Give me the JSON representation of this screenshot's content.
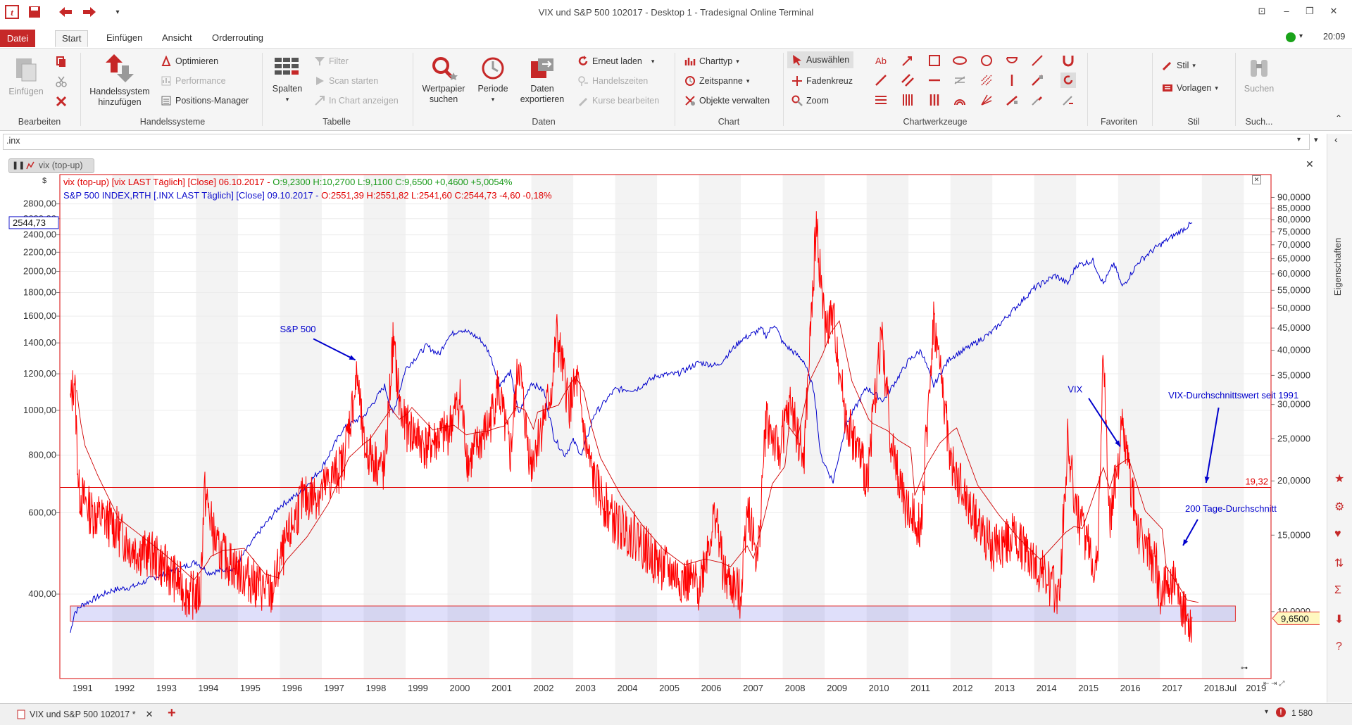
{
  "window": {
    "title": "VIX und S&P 500 102017 - Desktop 1 - Tradesignal Online Terminal",
    "time": "20:09"
  },
  "tabs": [
    "Datei",
    "Start",
    "Einfügen",
    "Ansicht",
    "Orderrouting"
  ],
  "active_tab": "Start",
  "ribbon": {
    "bearbeiten": {
      "label": "Bearbeiten",
      "einfuegen": "Einfügen"
    },
    "handelssysteme": {
      "label": "Handelssysteme",
      "add": "Handelssystem\nhinzufügen",
      "optimieren": "Optimieren",
      "performance": "Performance",
      "positions": "Positions-Manager"
    },
    "tabelle": {
      "label": "Tabelle",
      "spalten": "Spalten",
      "filter": "Filter",
      "scan": "Scan starten",
      "in_chart": "In Chart anzeigen"
    },
    "daten": {
      "label": "Daten",
      "wertpapier": "Wertpapier\nsuchen",
      "periode": "Periode",
      "export": "Daten\nexportieren",
      "reload": "Erneut laden",
      "handelszeiten": "Handelszeiten",
      "kurse": "Kurse bearbeiten"
    },
    "chart": {
      "label": "Chart",
      "charttyp": "Charttyp",
      "zeitspanne": "Zeitspanne",
      "objekte": "Objekte verwalten"
    },
    "chartwerkzeuge": {
      "label": "Chartwerkzeuge",
      "auswaehlen": "Auswählen",
      "fadenkreuz": "Fadenkreuz",
      "zoom": "Zoom"
    },
    "favoriten": {
      "label": "Favoriten"
    },
    "stil": {
      "label": "Stil",
      "stil": "Stil",
      "vorlagen": "Vorlagen"
    },
    "suche": {
      "label": "Such...",
      "suchen": "Suchen"
    }
  },
  "symbol_input": ".inx",
  "chart_tab": "vix (top-up)",
  "sidebar": {
    "label": "Eigenschaften"
  },
  "bottom": {
    "doc_tab": "VIX und S&P 500 102017 *",
    "status": "1 580"
  },
  "chart_data": {
    "type": "line",
    "legend": [
      {
        "prefix": "vix (top-up) [vix LAST Täglich] [Close] 06.10.2017 - ",
        "ohlc": "O:9,2300 H:10,2700 L:9,1100 C:9,6500 +0,4600 +5,0054%"
      },
      {
        "prefix": "S&P 500 INDEX,RTH [.INX LAST Täglich] [Close] 09.10.2017 - ",
        "ohlc": "O:2551,39 H:2551,82 L:2541,60 C:2544,73 -4,60 -0,18%"
      }
    ],
    "left_axis": {
      "unit": "$",
      "ticks": [
        "2800,00",
        "2600,00",
        "2400,00",
        "2200,00",
        "2000,00",
        "1800,00",
        "1600,00",
        "1400,00",
        "1200,00",
        "1000,00",
        "800,00",
        "600,00",
        "400,00"
      ],
      "values": [
        2800,
        2600,
        2400,
        2200,
        2000,
        1800,
        1600,
        1400,
        1200,
        1000,
        800,
        600,
        400
      ],
      "last_label": "2544,73",
      "scale": "log"
    },
    "right_axis": {
      "ticks": [
        "90,0000",
        "85,0000",
        "80,0000",
        "75,0000",
        "70,0000",
        "65,0000",
        "60,0000",
        "55,0000",
        "50,0000",
        "45,0000",
        "40,0000",
        "35,0000",
        "30,0000",
        "25,0000",
        "20,0000",
        "15,0000",
        "10,0000"
      ],
      "values": [
        90,
        85,
        80,
        75,
        70,
        65,
        60,
        55,
        50,
        45,
        40,
        35,
        30,
        25,
        20,
        15,
        10
      ],
      "last_label": "9,6500",
      "scale": "log"
    },
    "x_ticks": [
      "1991",
      "1992",
      "1993",
      "1994",
      "1995",
      "1996",
      "1997",
      "1998",
      "1999",
      "2000",
      "2001",
      "2002",
      "2003",
      "2004",
      "2005",
      "2006",
      "2007",
      "2008",
      "2009",
      "2010",
      "2011",
      "2012",
      "2013",
      "2014",
      "2015",
      "2016",
      "2017",
      "2018",
      "Jul",
      "2019"
    ],
    "hline_value": 19.32,
    "hline_label": "19,32",
    "band": [
      9.5,
      10.3
    ],
    "series": [
      {
        "name": "S&P 500",
        "color": "#0000cc",
        "axis": "left",
        "points": [
          [
            1991.0,
            330
          ],
          [
            1991.1,
            365
          ],
          [
            1991.3,
            380
          ],
          [
            1992.0,
            408
          ],
          [
            1992.5,
            415
          ],
          [
            1993.0,
            435
          ],
          [
            1993.5,
            450
          ],
          [
            1994.0,
            470
          ],
          [
            1994.3,
            445
          ],
          [
            1994.9,
            455
          ],
          [
            1995.5,
            545
          ],
          [
            1996.0,
            620
          ],
          [
            1996.5,
            665
          ],
          [
            1997.0,
            750
          ],
          [
            1997.5,
            910
          ],
          [
            1997.8,
            950
          ],
          [
            1998.0,
            970
          ],
          [
            1998.5,
            1130
          ],
          [
            1998.7,
            980
          ],
          [
            1999.0,
            1230
          ],
          [
            1999.5,
            1380
          ],
          [
            1999.8,
            1320
          ],
          [
            2000.0,
            1440
          ],
          [
            2000.3,
            1500
          ],
          [
            2000.6,
            1460
          ],
          [
            2000.8,
            1420
          ],
          [
            2001.0,
            1330
          ],
          [
            2001.25,
            1140
          ],
          [
            2001.5,
            1210
          ],
          [
            2001.7,
            980
          ],
          [
            2002.0,
            1150
          ],
          [
            2002.3,
            1100
          ],
          [
            2002.55,
            870
          ],
          [
            2002.8,
            800
          ],
          [
            2003.0,
            860
          ],
          [
            2003.2,
            800
          ],
          [
            2003.5,
            980
          ],
          [
            2004.0,
            1110
          ],
          [
            2004.5,
            1110
          ],
          [
            2005.0,
            1190
          ],
          [
            2005.5,
            1200
          ],
          [
            2006.0,
            1270
          ],
          [
            2006.45,
            1250
          ],
          [
            2007.0,
            1420
          ],
          [
            2007.5,
            1500
          ],
          [
            2007.6,
            1450
          ],
          [
            2007.8,
            1540
          ],
          [
            2008.0,
            1400
          ],
          [
            2008.5,
            1280
          ],
          [
            2008.75,
            1100
          ],
          [
            2008.9,
            800
          ],
          [
            2009.2,
            700
          ],
          [
            2009.5,
            930
          ],
          [
            2010.0,
            1120
          ],
          [
            2010.4,
            1050
          ],
          [
            2011.0,
            1280
          ],
          [
            2011.3,
            1350
          ],
          [
            2011.6,
            1130
          ],
          [
            2011.8,
            1220
          ],
          [
            2012.0,
            1300
          ],
          [
            2012.5,
            1380
          ],
          [
            2013.0,
            1480
          ],
          [
            2013.5,
            1650
          ],
          [
            2014.0,
            1840
          ],
          [
            2014.5,
            1960
          ],
          [
            2014.8,
            1880
          ],
          [
            2015.0,
            2060
          ],
          [
            2015.4,
            2110
          ],
          [
            2015.65,
            1880
          ],
          [
            2015.9,
            2080
          ],
          [
            2016.1,
            1850
          ],
          [
            2016.5,
            2100
          ],
          [
            2016.9,
            2250
          ],
          [
            2017.3,
            2380
          ],
          [
            2017.77,
            2545
          ]
        ]
      },
      {
        "name": "VIX",
        "color": "#ff0000",
        "axis": "right",
        "points": [
          [
            1991.0,
            30
          ],
          [
            1991.1,
            35
          ],
          [
            1991.2,
            19
          ],
          [
            1991.5,
            17
          ],
          [
            1992.0,
            16
          ],
          [
            1992.5,
            14
          ],
          [
            1993.0,
            13.5
          ],
          [
            1993.5,
            12
          ],
          [
            1993.8,
            11
          ],
          [
            1994.1,
            11
          ],
          [
            1994.2,
            19
          ],
          [
            1994.5,
            14
          ],
          [
            1995.0,
            12.5
          ],
          [
            1995.5,
            11.5
          ],
          [
            1995.8,
            11
          ],
          [
            1996.0,
            13
          ],
          [
            1996.5,
            18
          ],
          [
            1997.0,
            19
          ],
          [
            1997.5,
            22
          ],
          [
            1997.85,
            35
          ],
          [
            1998.0,
            24
          ],
          [
            1998.5,
            21
          ],
          [
            1998.7,
            42
          ],
          [
            1998.9,
            28
          ],
          [
            1999.0,
            27
          ],
          [
            1999.5,
            24
          ],
          [
            2000.0,
            26
          ],
          [
            2000.3,
            31
          ],
          [
            2000.5,
            22
          ],
          [
            2000.8,
            25
          ],
          [
            2001.0,
            27
          ],
          [
            2001.2,
            33
          ],
          [
            2001.5,
            23
          ],
          [
            2001.7,
            38
          ],
          [
            2001.9,
            25
          ],
          [
            2002.0,
            22
          ],
          [
            2002.5,
            33
          ],
          [
            2002.6,
            44
          ],
          [
            2002.9,
            30
          ],
          [
            2003.1,
            34
          ],
          [
            2003.3,
            24
          ],
          [
            2003.5,
            20
          ],
          [
            2004.0,
            16
          ],
          [
            2004.5,
            15
          ],
          [
            2005.0,
            13
          ],
          [
            2005.5,
            12
          ],
          [
            2006.0,
            11.5
          ],
          [
            2006.4,
            17
          ],
          [
            2006.6,
            12
          ],
          [
            2007.0,
            11
          ],
          [
            2007.15,
            18
          ],
          [
            2007.4,
            13
          ],
          [
            2007.6,
            28
          ],
          [
            2007.9,
            23
          ],
          [
            2008.0,
            26
          ],
          [
            2008.2,
            30
          ],
          [
            2008.5,
            22
          ],
          [
            2008.8,
            79
          ],
          [
            2009.0,
            45
          ],
          [
            2009.2,
            48
          ],
          [
            2009.5,
            28
          ],
          [
            2009.9,
            22
          ],
          [
            2010.0,
            20
          ],
          [
            2010.35,
            44
          ],
          [
            2010.6,
            24
          ],
          [
            2010.9,
            18
          ],
          [
            2011.0,
            17
          ],
          [
            2011.3,
            16
          ],
          [
            2011.6,
            47
          ],
          [
            2011.9,
            28
          ],
          [
            2012.0,
            22
          ],
          [
            2012.5,
            17
          ],
          [
            2013.0,
            14
          ],
          [
            2013.5,
            15
          ],
          [
            2014.0,
            13
          ],
          [
            2014.6,
            11
          ],
          [
            2014.8,
            25
          ],
          [
            2015.0,
            17
          ],
          [
            2015.5,
            12.5
          ],
          [
            2015.65,
            40
          ],
          [
            2015.8,
            16
          ],
          [
            2016.1,
            27
          ],
          [
            2016.5,
            15
          ],
          [
            2016.9,
            13
          ],
          [
            2017.0,
            11
          ],
          [
            2017.3,
            12
          ],
          [
            2017.5,
            10
          ],
          [
            2017.77,
            9.65
          ]
        ]
      }
    ],
    "annotations": [
      {
        "text": "S&P 500",
        "color": "#0000cc",
        "x": 1996.0,
        "y": 44
      },
      {
        "text": "VIX",
        "color": "#0000cc",
        "x": 2014.8,
        "y": 32
      },
      {
        "text": "VIX-Durchschnittswert seit 1991",
        "color": "#0000cc",
        "x": 2017.2,
        "y": 31
      },
      {
        "text": "200 Tage-Durchschnitt",
        "color": "#0000cc",
        "x": 2017.6,
        "y": 17
      }
    ]
  }
}
